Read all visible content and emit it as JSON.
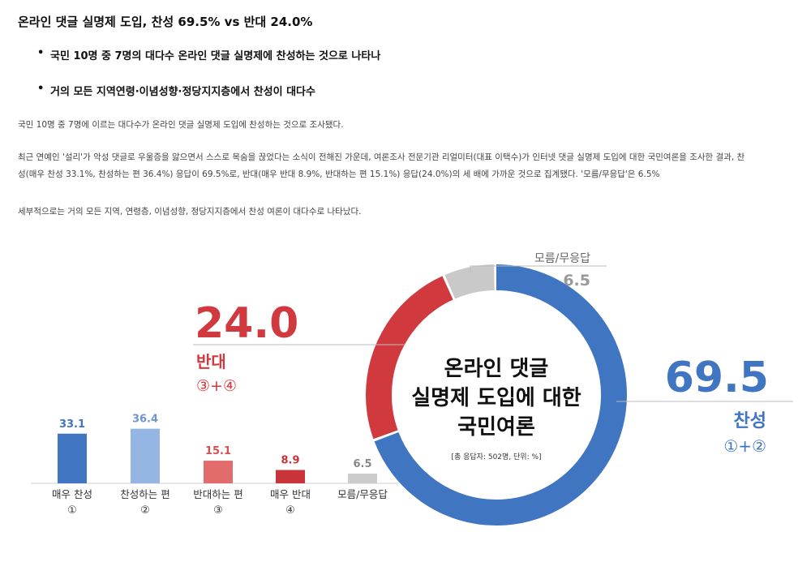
{
  "article": {
    "headline": "온라인 댓글 실명제 도입, 찬성 69.5% vs 반대 24.0%",
    "bullets": [
      "국민 10명 중 7명의 대다수 온라인 댓글 실명제에 찬성하는 것으로 나타나",
      "거의 모든 지역연령·이념성향·정당지지층에서 찬성이 대다수"
    ],
    "paragraphs": [
      "국민 10명 중 7명에 이르는 대다수가 온라인 댓글 실명제 도입에 찬성하는 것으로 조사됐다.",
      "최근 연예인 '설리'가 악성 댓글로 우울증을 앓으면서 스스로 목숨을 끊었다는 소식이 전해진 가운데, 여론조사 전문기관 리얼미터(대표 이택수)가 인터넷 댓글 실명제 도입에 대한 국민여론을 조사한 결과, 찬",
      "성(매우 찬성 33.1%, 찬성하는 편 36.4%) 응답이 69.5%로, 반대(매우 반대 8.9%, 반대하는 편 15.1%) 응답(24.0%)의 세 배에 가까운 것으로 집계됐다. '모름/무응답'은 6.5%",
      "세부적으로는 거의 모든 지역, 연령층, 이념성향, 정당지지층에서 찬성 여론이 대다수로 나타났다."
    ]
  },
  "chart_data": {
    "type": "bar",
    "categories": [
      "매우 찬성",
      "찬성하는 편",
      "반대하는 편",
      "매우 반대",
      "모름/무응답"
    ],
    "category_markers": [
      "①",
      "②",
      "③",
      "④",
      ""
    ],
    "values": [
      33.1,
      36.4,
      15.1,
      8.9,
      6.5
    ],
    "value_labels": [
      "33.1",
      "36.4",
      "15.1",
      "8.9",
      "6.5"
    ],
    "colors": [
      "#3f75c1",
      "#95b6e2",
      "#e26b6b",
      "#c8343a",
      "#cccccc"
    ],
    "label_colors": [
      "#3f75c1",
      "#6f95cf",
      "#d65050",
      "#c8343a",
      "#888888"
    ],
    "donut": {
      "title_lines": [
        "온라인 댓글",
        "실명제 도입에 대한",
        "국민여론"
      ],
      "note": "[총 응답자: 502명, 단위: %]",
      "segments": [
        {
          "label": "찬성",
          "sublabel": "①+②",
          "value": 69.5,
          "value_label": "69.5",
          "color": "#3f75c1"
        },
        {
          "label": "반대",
          "sublabel": "③+④",
          "value": 24.0,
          "value_label": "24.0",
          "color": "#d0393e"
        },
        {
          "label": "모름/무응답",
          "sublabel": "",
          "value": 6.5,
          "value_label": "6.5",
          "color": "#c9c9c9"
        }
      ]
    }
  }
}
